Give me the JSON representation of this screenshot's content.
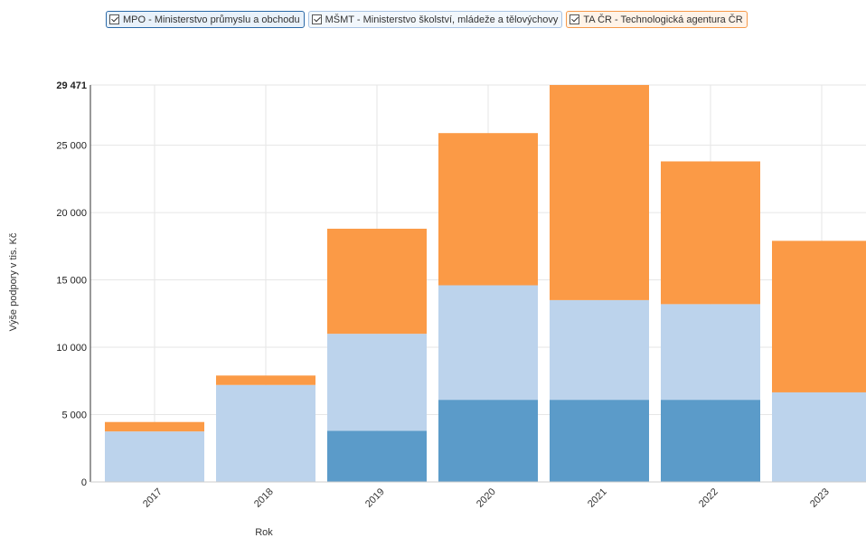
{
  "legend": [
    {
      "label": "MPO - Ministerstvo průmyslu a obchodu",
      "color": "#5b9bc9",
      "border": "#2b6aa8",
      "bg": "#e8f1fa",
      "checked": true
    },
    {
      "label": "MŠMT - Ministerstvo školství, mládeže a tělovýchovy",
      "color": "#bcd3ec",
      "border": "#a9c4e4",
      "bg": "#f2f7fc",
      "checked": true
    },
    {
      "label": "TA ČR - Technologická agentura ČR",
      "color": "#fb9a46",
      "border": "#f59a4a",
      "bg": "#fff3e8",
      "checked": true
    }
  ],
  "chart_data": {
    "type": "bar",
    "stacked": true,
    "xlabel": "Rok",
    "ylabel": "Výše podpory v tis. Kč",
    "ylim": [
      0,
      29471
    ],
    "yticks": [
      0,
      5000,
      10000,
      15000,
      20000,
      25000,
      29471
    ],
    "ytick_labels": [
      "0",
      "5 000",
      "10 000",
      "15 000",
      "20 000",
      "25 000",
      "29 471"
    ],
    "grid": true,
    "categories": [
      "2017",
      "2018",
      "2019",
      "2020",
      "2021",
      "2022",
      "2023"
    ],
    "series": [
      {
        "name": "MPO - Ministerstvo průmyslu a obchodu",
        "color": "#5b9bc9",
        "values": [
          0,
          0,
          3800,
          6100,
          6100,
          6100,
          0
        ]
      },
      {
        "name": "MŠMT - Ministerstvo školství, mládeže a tělovýchovy",
        "color": "#bcd3ec",
        "values": [
          3750,
          7200,
          7200,
          8500,
          7400,
          7100,
          6650
        ]
      },
      {
        "name": "TA ČR - Technologická agentura ČR",
        "color": "#fb9a46",
        "values": [
          700,
          700,
          7800,
          11300,
          15971,
          10600,
          11250
        ]
      }
    ]
  }
}
